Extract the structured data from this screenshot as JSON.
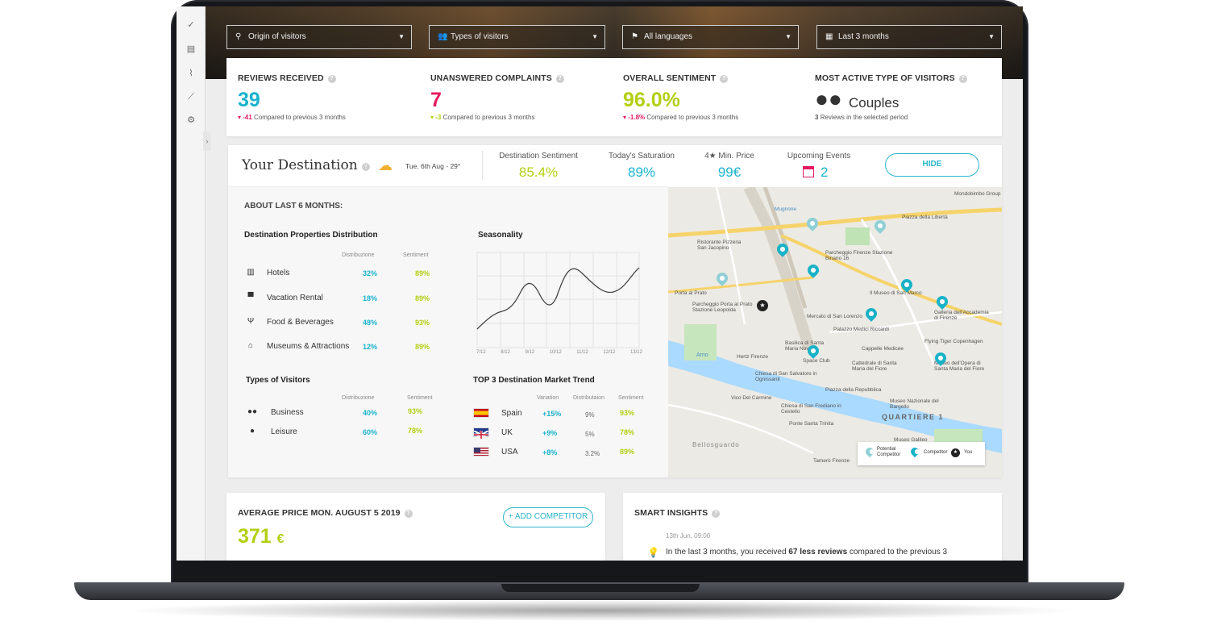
{
  "filters": {
    "origin": "Origin of visitors",
    "types": "Types of visitors",
    "languages": "All languages",
    "period": "Last 3 months"
  },
  "kpis": [
    {
      "title": "REVIEWS RECEIVED",
      "value": "39",
      "delta": "-41",
      "sub": "Compared to previous 3 months",
      "color": "#18b3cc"
    },
    {
      "title": "UNANSWERED COMPLAINTS",
      "value": "7",
      "delta": "-3",
      "sub": "Compared to previous 3 months",
      "color": "#e5195f"
    },
    {
      "title": "OVERALL SENTIMENT",
      "value": "96.0%",
      "delta": "-1.8%",
      "sub": "Compared to previous 3 months",
      "color": "#b4cf12"
    },
    {
      "title": "MOST ACTIVE TYPE OF VISITORS",
      "value": "Couples",
      "delta": "3",
      "sub": "Reviews in the selected period",
      "color": "#333333"
    }
  ],
  "destination": {
    "title": "Your Destination",
    "weather": "Tue. 6th Aug - 29°",
    "stats": [
      {
        "label": "Destination Sentiment",
        "value": "85.4%",
        "color": "#b4cf12"
      },
      {
        "label": "Today's Saturation",
        "value": "89%",
        "color": "#18b3cc"
      },
      {
        "label": "4★ Min. Price",
        "value": "99€",
        "color": "#18b3cc"
      },
      {
        "label": "Upcoming Events",
        "value": "2",
        "color": "#18b3cc"
      }
    ],
    "hide_label": "HIDE",
    "about": "ABOUT LAST 6 MONTHS:",
    "properties": {
      "title": "Destination Properties Distribution",
      "col1": "Distribuzione",
      "col2": "Sentiment",
      "rows": [
        {
          "icon": "building-icon",
          "label": "Hotels",
          "dist": "32%",
          "sent": "89%"
        },
        {
          "icon": "shop-icon",
          "label": "Vacation Rental",
          "dist": "18%",
          "sent": "89%"
        },
        {
          "icon": "fork-knife-icon",
          "label": "Food & Beverages",
          "dist": "48%",
          "sent": "93%"
        },
        {
          "icon": "museum-icon",
          "label": "Museums & Attractions",
          "dist": "12%",
          "sent": "89%"
        }
      ]
    },
    "seasonality": {
      "title": "Seasonality",
      "ticks": [
        "7/12",
        "8/12",
        "9/12",
        "10/12",
        "11/12",
        "12/12",
        "13/12"
      ]
    },
    "visitors": {
      "title": "Types of Visitors",
      "col1": "Distribuzione",
      "col2": "Sentiment",
      "rows": [
        {
          "label": "Business",
          "dist": "40%",
          "sent": "93%"
        },
        {
          "label": "Leisure",
          "dist": "60%",
          "sent": "78%"
        }
      ]
    },
    "market": {
      "title": "TOP 3 Destination Market Trend",
      "col1": "Variation",
      "col2": "Distributaion",
      "col3": "Sentiment",
      "rows": [
        {
          "label": "Spain",
          "variation": "+15%",
          "dist": "9%",
          "sent": "93%"
        },
        {
          "label": "UK",
          "variation": "+9%",
          "dist": "5%",
          "sent": "78%"
        },
        {
          "label": "USA",
          "variation": "+8%",
          "dist": "3.2%",
          "sent": "89%"
        }
      ]
    },
    "map": {
      "labels": [
        "Mondobimbo Group",
        "Piazza della Libertà",
        "Ristorante Pizzeria San Jacopino",
        "Parcheggio Firenze Stazione Binario 16",
        "Porta al Prato",
        "Parcheggio Porta al Prato Stazione Leopolda",
        "Il Museo di San Marco",
        "Galleria dell'Accademia di Firenze",
        "Mercato di San Lorenzo",
        "Palazzo Medici Riccardi",
        "Cappelle Medicee",
        "Flying Tiger Copenhagen",
        "Basilica di Santa Maria Novella",
        "Cattedrale di Santa Maria del Fiore",
        "Museo dell'Opera di Santa Maria del Fiore",
        "Hertz Firenze",
        "Chiesa di San Salvatore in Ognissanti",
        "Piazza della Repubblica",
        "Museo Nazionale del Bargello",
        "Vico Del Carmine",
        "Chiesa di San Frediano in Cestello",
        "Ponte Santa Trinita",
        "QUARTIERE 1",
        "Bellosguardo",
        "Museo Galileo",
        "Tamerò Firenze",
        "Space Club",
        "Arno",
        "Mugnone"
      ],
      "legend": {
        "potential": "Potential Competitor",
        "competitor": "Competitor",
        "you": "You"
      }
    }
  },
  "average_price": {
    "title": "AVERAGE PRICE MON. AUGUST 5 2019",
    "value": "371",
    "currency": "€",
    "button": "+ ADD COMPETITOR"
  },
  "insights": {
    "title": "SMART INSIGHTS",
    "date": "13th Jun, 09:00",
    "text_pre": "In the last 3 months, you received ",
    "text_bold": "67 less reviews",
    "text_post": " compared to the previous 3"
  }
}
